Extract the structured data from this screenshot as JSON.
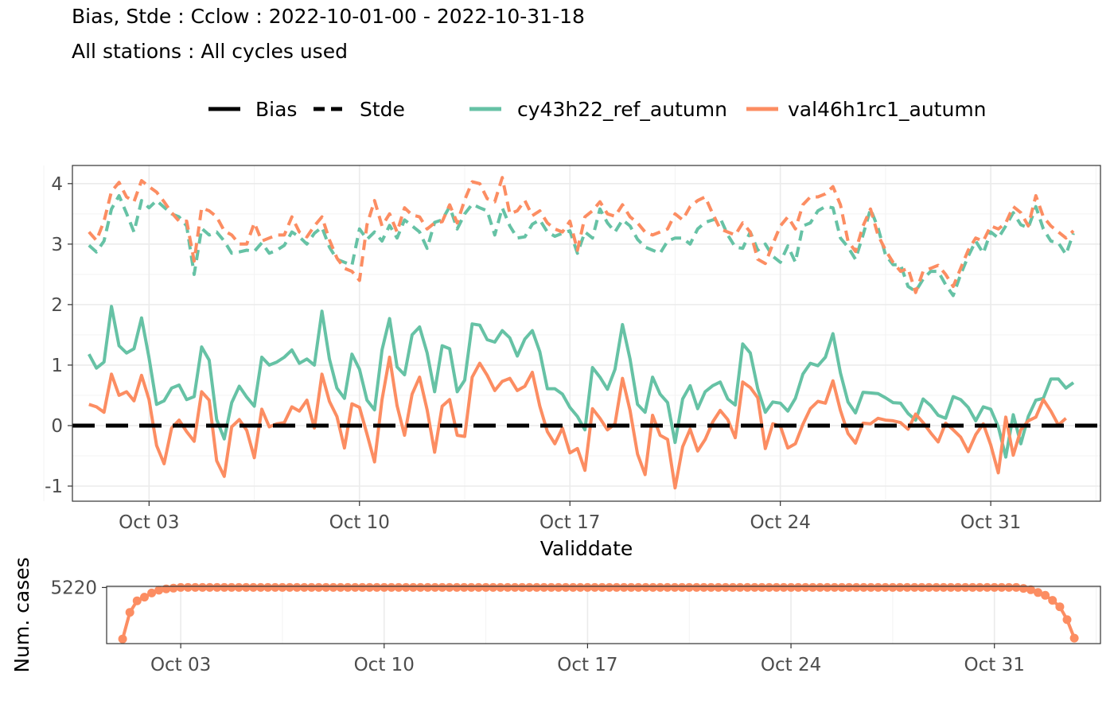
{
  "title": "Bias, Stde : Cclow : 2022-10-01-00 - 2022-10-31-18",
  "subtitle": "All stations : All cycles used",
  "legend": {
    "stat_entries": [
      {
        "label": "Bias",
        "linetype": "solid"
      },
      {
        "label": "Stde",
        "linetype": "dashed"
      }
    ],
    "model_entries": [
      {
        "label": "cy43h22_ref_autumn",
        "color": "#66c2a5"
      },
      {
        "label": "val46h1rc1_autumn",
        "color": "#fc8d62"
      }
    ]
  },
  "colors": {
    "cy43h22_ref_autumn": "#66c2a5",
    "val46h1rc1_autumn": "#fc8d62",
    "grid_major": "#ebebeb",
    "grid_minor": "#f3f3f3",
    "panel_border": "#333333"
  },
  "chart_data": [
    {
      "type": "line",
      "xlabel": "Validdate",
      "ylabel": "",
      "x_ticks": [
        "Oct 03",
        "Oct 10",
        "Oct 17",
        "Oct 24",
        "Oct 31"
      ],
      "y_ticks": [
        "-1",
        "0",
        "1",
        "2",
        "3",
        "4"
      ],
      "ylim": [
        -1.25,
        4.3
      ],
      "xlim_days": [
        -0.55,
        33.65
      ],
      "x_start": "2022-10-01 00:00",
      "x_step_hours": 6,
      "zero_line": 0,
      "series": [
        {
          "name": "cy43h22_ref_autumn",
          "stat": "Bias",
          "values": [
            1.18,
            0.95,
            1.05,
            1.97,
            1.32,
            1.2,
            1.27,
            1.78,
            1.12,
            0.35,
            0.41,
            0.62,
            0.67,
            0.43,
            0.48,
            1.3,
            1.08,
            0.1,
            -0.22,
            0.38,
            0.65,
            0.47,
            0.32,
            1.13,
            1.0,
            1.05,
            1.13,
            1.25,
            1.03,
            1.1,
            1.0,
            1.89,
            1.1,
            0.62,
            0.45,
            1.18,
            0.93,
            0.42,
            0.26,
            1.25,
            1.77,
            0.97,
            0.84,
            1.5,
            1.63,
            1.2,
            0.56,
            1.32,
            1.27,
            0.56,
            0.75,
            1.68,
            1.66,
            1.42,
            1.38,
            1.57,
            1.45,
            1.15,
            1.43,
            1.57,
            1.22,
            0.61,
            0.61,
            0.52,
            0.3,
            0.15,
            -0.07,
            0.96,
            0.8,
            0.6,
            0.93,
            1.67,
            1.1,
            0.35,
            0.22,
            0.8,
            0.52,
            0.38,
            -0.28,
            0.44,
            0.66,
            0.28,
            0.56,
            0.66,
            0.72,
            0.44,
            0.34,
            1.35,
            1.2,
            0.61,
            0.22,
            0.39,
            0.37,
            0.24,
            0.45,
            0.85,
            1.03,
            0.99,
            1.13,
            1.52,
            0.87,
            0.39,
            0.21,
            0.55,
            0.54,
            0.53,
            0.46,
            0.38,
            0.37,
            0.2,
            0.09,
            0.44,
            0.33,
            0.17,
            0.12,
            0.48,
            0.43,
            0.3,
            0.08,
            0.31,
            0.27,
            -0.02,
            -0.52,
            0.18,
            -0.3,
            0.15,
            0.42,
            0.45,
            0.77,
            0.77,
            0.62,
            0.71
          ]
        },
        {
          "name": "val46h1rc1_autumn",
          "stat": "Bias",
          "values": [
            0.35,
            0.31,
            0.22,
            0.85,
            0.5,
            0.56,
            0.41,
            0.83,
            0.43,
            -0.33,
            -0.63,
            -0.04,
            0.09,
            -0.1,
            -0.26,
            0.56,
            0.42,
            -0.58,
            -0.84,
            -0.02,
            0.1,
            -0.08,
            -0.53,
            0.27,
            -0.02,
            0.03,
            0.05,
            0.31,
            0.24,
            0.42,
            -0.04,
            0.85,
            0.4,
            0.15,
            -0.37,
            0.36,
            0.3,
            -0.14,
            -0.6,
            0.43,
            1.13,
            0.33,
            -0.16,
            0.52,
            0.8,
            0.26,
            -0.44,
            0.32,
            0.43,
            -0.16,
            -0.18,
            0.8,
            1.03,
            0.83,
            0.58,
            0.73,
            0.78,
            0.58,
            0.65,
            0.88,
            0.32,
            -0.1,
            -0.3,
            -0.04,
            -0.45,
            -0.38,
            -0.74,
            0.28,
            0.12,
            -0.07,
            0.03,
            0.78,
            0.25,
            -0.47,
            -0.81,
            0.17,
            -0.16,
            -0.23,
            -1.03,
            -0.35,
            -0.06,
            -0.42,
            -0.23,
            0.06,
            0.25,
            0.1,
            -0.2,
            0.72,
            0.63,
            0.46,
            -0.38,
            0.03,
            -0.01,
            -0.37,
            -0.3,
            0.02,
            0.28,
            0.4,
            0.37,
            0.74,
            0.25,
            -0.13,
            -0.29,
            0.04,
            0.03,
            0.12,
            0.09,
            0.08,
            0.05,
            -0.06,
            0.19,
            0.05,
            -0.12,
            -0.27,
            0.04,
            -0.07,
            -0.19,
            -0.43,
            -0.15,
            0.03,
            -0.32,
            -0.78,
            0.14,
            -0.49,
            -0.07,
            0.08,
            0.14,
            0.43,
            0.24,
            0.01,
            0.12
          ]
        },
        {
          "name": "cy43h22_ref_autumn",
          "stat": "Stde",
          "values": [
            2.98,
            2.87,
            3.05,
            3.58,
            3.8,
            3.51,
            3.2,
            3.72,
            3.6,
            3.72,
            3.61,
            3.5,
            3.45,
            3.3,
            2.5,
            3.26,
            3.15,
            3.2,
            3.05,
            2.85,
            2.87,
            2.9,
            2.88,
            3.02,
            2.85,
            2.9,
            2.98,
            3.2,
            3.12,
            3.0,
            3.18,
            3.28,
            2.95,
            2.75,
            2.7,
            2.65,
            3.25,
            3.08,
            3.2,
            3.05,
            3.31,
            3.1,
            3.4,
            3.3,
            3.2,
            2.93,
            3.36,
            3.4,
            3.62,
            3.25,
            3.5,
            3.66,
            3.6,
            3.55,
            3.15,
            3.6,
            3.3,
            3.1,
            3.12,
            3.33,
            3.4,
            3.2,
            3.13,
            3.18,
            3.22,
            2.85,
            3.2,
            3.1,
            3.58,
            3.35,
            3.2,
            3.4,
            3.3,
            3.08,
            2.95,
            2.9,
            2.85,
            3.05,
            3.1,
            3.1,
            3.0,
            3.25,
            3.36,
            3.4,
            3.43,
            3.15,
            2.95,
            2.93,
            3.2,
            2.9,
            3.0,
            2.8,
            2.7,
            2.97,
            2.7,
            3.3,
            3.35,
            3.55,
            3.62,
            3.6,
            3.1,
            2.95,
            2.75,
            3.15,
            3.58,
            3.27,
            2.82,
            2.66,
            2.66,
            2.3,
            2.22,
            2.42,
            2.55,
            2.55,
            2.33,
            2.15,
            2.5,
            2.8,
            3.05,
            2.85,
            3.2,
            3.1,
            3.3,
            3.52,
            3.32,
            3.27,
            3.62,
            3.25,
            3.05,
            3.02,
            2.83,
            3.18
          ]
        },
        {
          "name": "val46h1rc1_autumn",
          "stat": "Stde",
          "values": [
            3.2,
            3.06,
            3.38,
            3.87,
            4.02,
            3.78,
            3.7,
            4.05,
            3.95,
            3.86,
            3.7,
            3.52,
            3.38,
            3.38,
            2.72,
            3.6,
            3.55,
            3.45,
            3.22,
            3.15,
            3.0,
            3.0,
            3.35,
            3.05,
            3.1,
            3.15,
            3.15,
            3.45,
            3.2,
            3.12,
            3.3,
            3.45,
            3.07,
            2.77,
            2.6,
            2.55,
            2.4,
            3.32,
            3.72,
            3.3,
            3.5,
            3.2,
            3.6,
            3.48,
            3.45,
            3.25,
            3.35,
            3.37,
            3.65,
            3.35,
            3.73,
            4.03,
            4.0,
            3.75,
            3.7,
            4.1,
            3.5,
            3.55,
            3.72,
            3.47,
            3.55,
            3.35,
            3.25,
            3.2,
            3.38,
            2.9,
            3.45,
            3.55,
            3.7,
            3.5,
            3.46,
            3.65,
            3.45,
            3.35,
            3.2,
            3.15,
            3.2,
            3.25,
            3.5,
            3.4,
            3.62,
            3.72,
            3.78,
            3.5,
            3.25,
            3.2,
            3.15,
            3.35,
            3.2,
            2.75,
            2.68,
            3.0,
            3.3,
            3.45,
            3.25,
            3.65,
            3.78,
            3.78,
            3.83,
            3.95,
            3.65,
            3.05,
            2.88,
            3.3,
            3.58,
            3.15,
            2.9,
            2.7,
            2.55,
            2.6,
            2.2,
            2.55,
            2.6,
            2.65,
            2.5,
            2.3,
            2.6,
            2.9,
            3.1,
            3.05,
            3.3,
            3.25,
            3.35,
            3.62,
            3.52,
            3.3,
            3.8,
            3.45,
            3.3,
            3.2,
            3.1,
            3.22
          ]
        }
      ]
    },
    {
      "type": "line",
      "xlabel": "",
      "ylabel": "Num. cases",
      "x_ticks": [
        "Oct 03",
        "Oct 10",
        "Oct 17",
        "Oct 24",
        "Oct 31"
      ],
      "y_ticks": [
        "5220"
      ],
      "ylim": [
        4000,
        5245
      ],
      "xlim_days": [
        -0.55,
        33.65
      ],
      "x_start": "2022-10-01 00:00",
      "x_step_hours": 6,
      "series": [
        {
          "name": "val46h1rc1_autumn",
          "points": true,
          "head": [
            4100,
            4680,
            4930,
            5010,
            5100,
            5160,
            5190,
            5205
          ],
          "plateau": 5220,
          "tail": [
            5200,
            5170,
            5110,
            5050,
            4940,
            4800,
            4520,
            4120
          ]
        }
      ]
    }
  ]
}
